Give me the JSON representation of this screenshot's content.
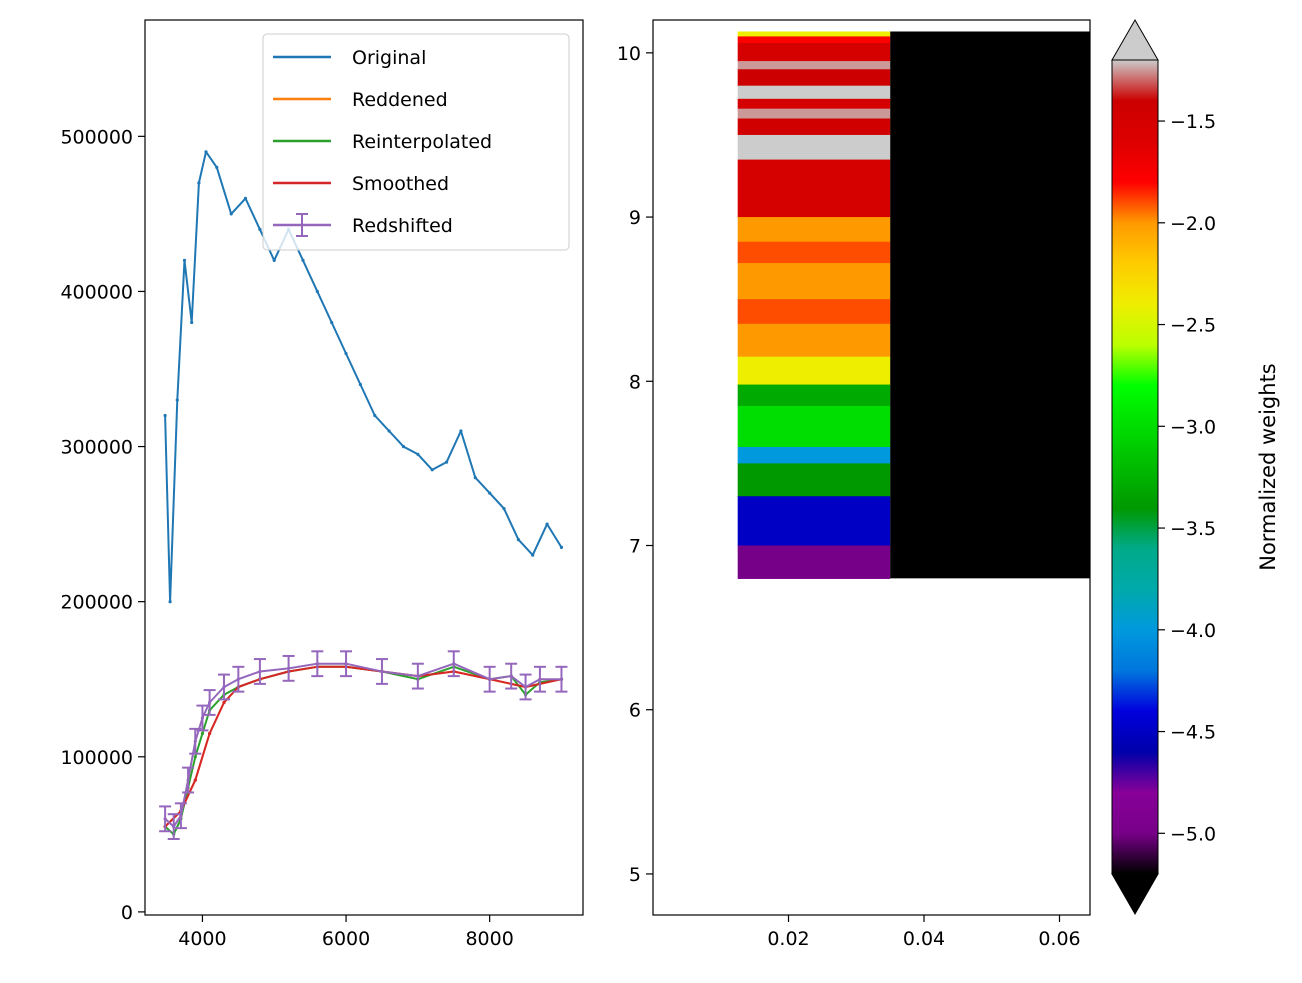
{
  "chart_data": [
    {
      "type": "line",
      "xlim": [
        3200,
        9300
      ],
      "ylim": [
        -2000,
        575000
      ],
      "x_ticks": [
        4000,
        6000,
        8000
      ],
      "x_tick_labels": [
        "4000",
        "6000",
        "8000"
      ],
      "y_ticks": [
        0,
        100000,
        200000,
        300000,
        400000,
        500000
      ],
      "y_tick_labels": [
        "0",
        "100000",
        "200000",
        "300000",
        "400000",
        "500000"
      ],
      "legend_position": "upper right",
      "series": [
        {
          "name": "Original",
          "color": "#1f77b4",
          "x": [
            3480,
            3550,
            3650,
            3750,
            3850,
            3950,
            4050,
            4200,
            4400,
            4600,
            4800,
            5000,
            5200,
            5400,
            5600,
            5800,
            6000,
            6200,
            6400,
            6600,
            6800,
            7000,
            7200,
            7400,
            7600,
            7800,
            8000,
            8200,
            8400,
            8600,
            8800,
            9000
          ],
          "y": [
            320000,
            200000,
            330000,
            420000,
            380000,
            470000,
            490000,
            480000,
            450000,
            460000,
            440000,
            420000,
            440000,
            420000,
            400000,
            380000,
            360000,
            340000,
            320000,
            310000,
            300000,
            295000,
            285000,
            290000,
            310000,
            280000,
            270000,
            260000,
            240000,
            230000,
            250000,
            235000
          ]
        },
        {
          "name": "Reddened",
          "color": "#ff7f0e",
          "x": [
            3480,
            3700,
            3900,
            4100,
            4300,
            4500,
            4800,
            5200,
            5600,
            6000,
            6500,
            7000,
            7500,
            8000,
            8500,
            9000
          ],
          "y": [
            55000,
            65000,
            85000,
            115000,
            135000,
            145000,
            150000,
            155000,
            158000,
            158000,
            155000,
            152000,
            155000,
            150000,
            145000,
            150000
          ]
        },
        {
          "name": "Reinterpolated",
          "color": "#2ca02c",
          "x": [
            3480,
            3600,
            3700,
            3800,
            3900,
            4000,
            4100,
            4300,
            4500,
            4800,
            5200,
            5600,
            6000,
            6500,
            7000,
            7500,
            8000,
            8300,
            8500,
            8700,
            9000
          ],
          "y": [
            55000,
            50000,
            60000,
            80000,
            100000,
            115000,
            130000,
            140000,
            145000,
            150000,
            155000,
            158000,
            158000,
            155000,
            150000,
            158000,
            150000,
            152000,
            140000,
            148000,
            150000
          ]
        },
        {
          "name": "Smoothed",
          "color": "#d62728",
          "x": [
            3480,
            3700,
            3900,
            4100,
            4300,
            4500,
            4800,
            5200,
            5600,
            6000,
            6500,
            7000,
            7500,
            8000,
            8500,
            9000
          ],
          "y": [
            55000,
            65000,
            85000,
            115000,
            135000,
            145000,
            150000,
            155000,
            158000,
            158000,
            155000,
            152000,
            155000,
            150000,
            145000,
            150000
          ]
        },
        {
          "name": "Redshifted",
          "color": "#9467bd",
          "errorbars": true,
          "x": [
            3480,
            3600,
            3700,
            3800,
            3900,
            4000,
            4100,
            4300,
            4500,
            4800,
            5200,
            5600,
            6000,
            6500,
            7000,
            7500,
            8000,
            8300,
            8500,
            8700,
            9000
          ],
          "y": [
            60000,
            55000,
            62000,
            85000,
            110000,
            125000,
            135000,
            145000,
            150000,
            155000,
            157000,
            160000,
            160000,
            155000,
            152000,
            160000,
            150000,
            152000,
            145000,
            150000,
            150000
          ]
        }
      ]
    },
    {
      "type": "heatmap",
      "xlim": [
        0.0,
        0.0645
      ],
      "ylim": [
        4.75,
        10.2
      ],
      "x_ticks": [
        0.02,
        0.04,
        0.06
      ],
      "x_tick_labels": [
        "0.02",
        "0.04",
        "0.06"
      ],
      "y_ticks": [
        5,
        6,
        7,
        8,
        9,
        10
      ],
      "y_tick_labels": [
        "5",
        "6",
        "7",
        "8",
        "9",
        "10"
      ],
      "columns": [
        {
          "x0": 0.0125,
          "x1": 0.035
        },
        {
          "x0": 0.035,
          "x1": 0.0645
        }
      ],
      "y_range": [
        6.8,
        10.13
      ],
      "rows_col1": [
        {
          "y0": 10.1,
          "y1": 10.13,
          "value": -2.4
        },
        {
          "y0": 10.06,
          "y1": 10.1,
          "value": -1.8
        },
        {
          "y0": 9.95,
          "y1": 10.06,
          "value": -1.5
        },
        {
          "y0": 9.9,
          "y1": 9.95,
          "value": -1.25
        },
        {
          "y0": 9.8,
          "y1": 9.9,
          "value": -1.4
        },
        {
          "y0": 9.72,
          "y1": 9.8,
          "value": -1.2
        },
        {
          "y0": 9.66,
          "y1": 9.72,
          "value": -1.5
        },
        {
          "y0": 9.6,
          "y1": 9.66,
          "value": -1.25
        },
        {
          "y0": 9.5,
          "y1": 9.6,
          "value": -1.45
        },
        {
          "y0": 9.35,
          "y1": 9.5,
          "value": -1.2
        },
        {
          "y0": 9.0,
          "y1": 9.35,
          "value": -1.5
        },
        {
          "y0": 8.85,
          "y1": 9.0,
          "value": -2.0
        },
        {
          "y0": 8.72,
          "y1": 8.85,
          "value": -1.9
        },
        {
          "y0": 8.5,
          "y1": 8.72,
          "value": -2.0
        },
        {
          "y0": 8.35,
          "y1": 8.5,
          "value": -1.9
        },
        {
          "y0": 8.15,
          "y1": 8.35,
          "value": -2.0
        },
        {
          "y0": 7.98,
          "y1": 8.15,
          "value": -2.4
        },
        {
          "y0": 7.85,
          "y1": 7.98,
          "value": -3.3
        },
        {
          "y0": 7.6,
          "y1": 7.85,
          "value": -3.0
        },
        {
          "y0": 7.5,
          "y1": 7.6,
          "value": -4.0
        },
        {
          "y0": 7.3,
          "y1": 7.5,
          "value": -3.4
        },
        {
          "y0": 7.0,
          "y1": 7.3,
          "value": -4.5
        },
        {
          "y0": 6.8,
          "y1": 7.0,
          "value": -5.0
        }
      ],
      "col2_value": -5.2
    }
  ],
  "colorbar": {
    "label": "Normalized weights",
    "vmin": -5.2,
    "vmax": -1.2,
    "ticks": [
      -1.5,
      -2.0,
      -2.5,
      -3.0,
      -3.5,
      -4.0,
      -4.5,
      -5.0
    ],
    "tick_labels": [
      "−1.5",
      "−2.0",
      "−2.5",
      "−3.0",
      "−3.5",
      "−4.0",
      "−4.5",
      "−5.0"
    ],
    "extend": "both",
    "colormap": "nipy_spectral"
  }
}
